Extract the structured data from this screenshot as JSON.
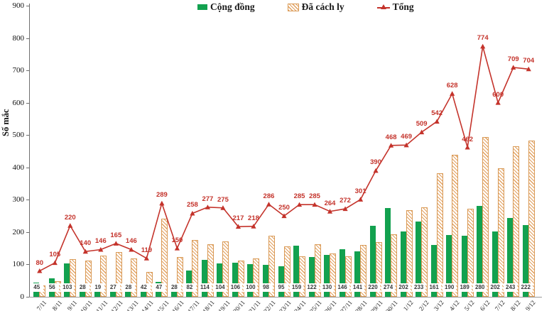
{
  "legend": {
    "community": "Cộng đồng",
    "quarantine": "Đã cách ly",
    "total": "Tổng"
  },
  "colors": {
    "community_bar": "#12A14F",
    "quarantine_stripe": "#E2A05E",
    "total_line": "#C4332B",
    "bar_value_text": "#3A3A3A"
  },
  "chart_data": {
    "type": "bar",
    "subtype": "grouped bars with line overlay (combo)",
    "title": "",
    "xlabel": "",
    "ylabel": "Số mắc",
    "ylim": [
      0,
      900
    ],
    "yticks": [
      0,
      100,
      200,
      300,
      400,
      500,
      600,
      700,
      800,
      900
    ],
    "grid": false,
    "legend_position": "top",
    "categories": [
      "7/11",
      "8/11",
      "9/11",
      "10/11",
      "11/11",
      "12/11",
      "13/11",
      "14/11",
      "15/11",
      "16/11",
      "17/11",
      "18/11",
      "19/11",
      "20/11",
      "21/11",
      "22/11",
      "23/11",
      "24/11",
      "25/11",
      "26/11",
      "27/11",
      "28/11",
      "29/11",
      "30/11",
      "1/12",
      "2/12",
      "3/12",
      "4/12",
      "5/12",
      "6/12",
      "7/12",
      "8/12",
      "9/12"
    ],
    "series": [
      {
        "name": "Cộng đồng",
        "type": "bar",
        "color": "#12A14F",
        "values": [
          45,
          56,
          103,
          28,
          19,
          27,
          28,
          42,
          47,
          28,
          82,
          114,
          104,
          106,
          100,
          98,
          95,
          159,
          122,
          130,
          146,
          141,
          220,
          274,
          202,
          233,
          161,
          190,
          189,
          280,
          202,
          243,
          222
        ],
        "value_labels_shown": true
      },
      {
        "name": "Đã cách ly",
        "type": "bar",
        "style": "diagonal-hatch",
        "color": "#E2A05E",
        "values": [
          35,
          49,
          117,
          112,
          127,
          138,
          118,
          77,
          242,
          122,
          176,
          163,
          171,
          111,
          118,
          188,
          155,
          126,
          163,
          134,
          126,
          160,
          170,
          194,
          267,
          276,
          381,
          438,
          273,
          494,
          398,
          466,
          482
        ],
        "value_labels_shown": false
      },
      {
        "name": "Tổng",
        "type": "line",
        "marker": "triangle",
        "color": "#C4332B",
        "values": [
          80,
          105,
          220,
          140,
          146,
          165,
          146,
          119,
          289,
          150,
          258,
          277,
          275,
          217,
          218,
          286,
          250,
          285,
          285,
          264,
          272,
          301,
          390,
          468,
          469,
          509,
          542,
          628,
          462,
          774,
          600,
          709,
          704
        ],
        "value_labels_shown": true
      }
    ]
  }
}
